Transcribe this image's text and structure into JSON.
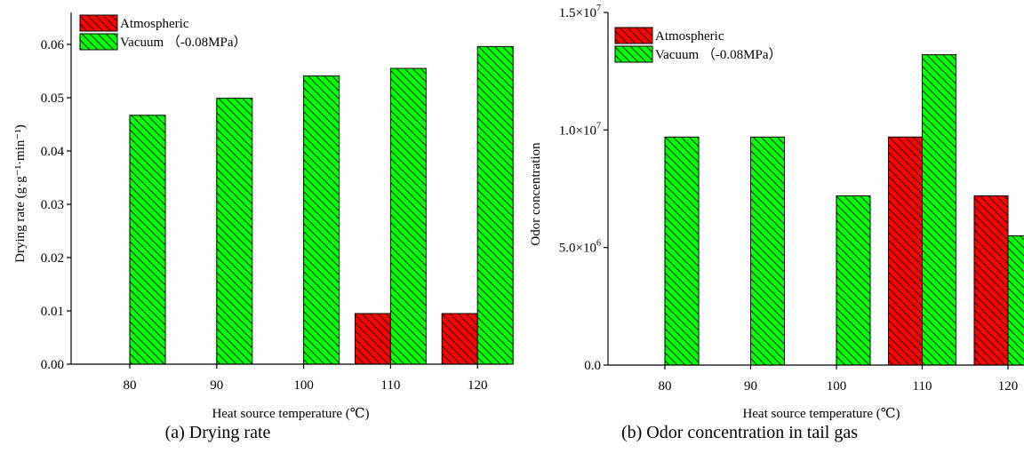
{
  "colors": {
    "atmospheric": "#ff0000",
    "vacuum": "#00ff00",
    "edge": "#000000"
  },
  "legend": {
    "atmospheric": "Atmospheric",
    "vacuum": "Vacuum （-0.08MPa）"
  },
  "chart_data": [
    {
      "type": "bar",
      "caption": "(a) Drying rate",
      "xlabel": "Heat source temperature (℃)",
      "ylabel": "Drying rate (g·g⁻¹·min⁻¹)",
      "categories": [
        "80",
        "90",
        "100",
        "110",
        "120"
      ],
      "series": [
        {
          "name": "Atmospheric",
          "values": [
            0,
            0,
            0,
            0.0095,
            0.0095
          ]
        },
        {
          "name": "Vacuum （-0.08MPa）",
          "values": [
            0.0467,
            0.0499,
            0.0541,
            0.0555,
            0.0596
          ]
        }
      ],
      "ylim": [
        0,
        0.066
      ],
      "yticks": [
        0,
        0.01,
        0.02,
        0.03,
        0.04,
        0.05,
        0.06
      ],
      "ytick_labels": [
        "0.00",
        "0.01",
        "0.02",
        "0.03",
        "0.04",
        "0.05",
        "0.06"
      ],
      "legend_position": "top-left",
      "grid": false
    },
    {
      "type": "bar",
      "caption": "(b) Odor concentration in tail gas",
      "xlabel": "Heat source temperature (℃)",
      "ylabel": "Odor concentration",
      "categories": [
        "80",
        "90",
        "100",
        "110",
        "120"
      ],
      "series": [
        {
          "name": "Atmospheric",
          "values": [
            0,
            0,
            0,
            9700000,
            7200000
          ]
        },
        {
          "name": "Vacuum （-0.08MPa）",
          "values": [
            9700000,
            9700000,
            7200000,
            13200000,
            5500000
          ]
        }
      ],
      "ylim": [
        0,
        15000000
      ],
      "yticks": [
        0,
        5000000,
        10000000,
        15000000
      ],
      "ytick_labels": [
        {
          "base": "0.0",
          "exp": ""
        },
        {
          "base": "5.0×10",
          "exp": "6"
        },
        {
          "base": "1.0×10",
          "exp": "7"
        },
        {
          "base": "1.5×10",
          "exp": "7"
        }
      ],
      "legend_position": "top-left",
      "grid": false
    }
  ]
}
